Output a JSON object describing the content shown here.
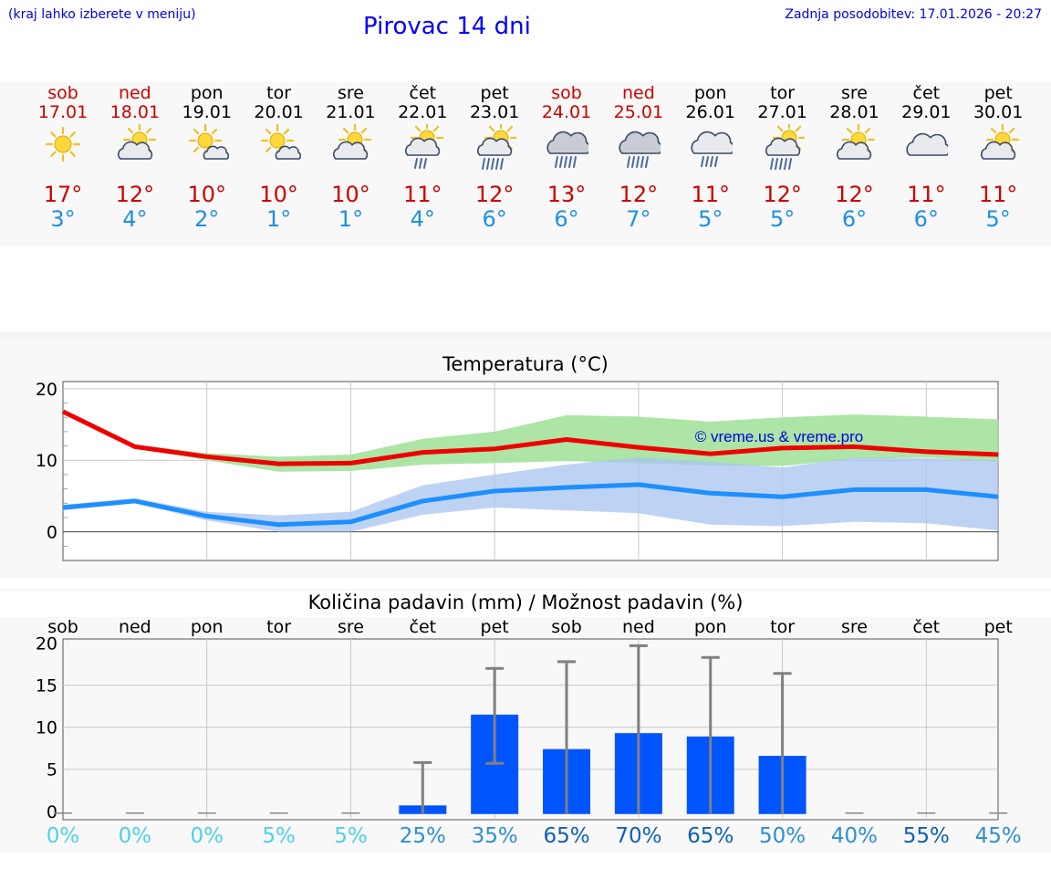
{
  "header": {
    "hint": "(kraj lahko izberete v meniju)",
    "title": "Pirovac 14 dni",
    "updated": "Zadnja posodobitev: 17.01.2026 - 20:27"
  },
  "days": [
    {
      "name": "sob",
      "date": "17.01",
      "weekend": true,
      "icon": "sunny-icon",
      "max": "17°",
      "min": "3°"
    },
    {
      "name": "ned",
      "date": "18.01",
      "weekend": true,
      "icon": "partly-cloudy-icon",
      "max": "12°",
      "min": "4°"
    },
    {
      "name": "pon",
      "date": "19.01",
      "weekend": false,
      "icon": "sun-small-cloud-icon",
      "max": "10°",
      "min": "2°"
    },
    {
      "name": "tor",
      "date": "20.01",
      "weekend": false,
      "icon": "sun-small-cloud-icon",
      "max": "10°",
      "min": "1°"
    },
    {
      "name": "sre",
      "date": "21.01",
      "weekend": false,
      "icon": "partly-cloudy-icon",
      "max": "10°",
      "min": "1°"
    },
    {
      "name": "čet",
      "date": "22.01",
      "weekend": false,
      "icon": "sun-cloud-light-rain-icon",
      "max": "11°",
      "min": "4°"
    },
    {
      "name": "pet",
      "date": "23.01",
      "weekend": false,
      "icon": "sun-cloud-rain-icon",
      "max": "12°",
      "min": "6°"
    },
    {
      "name": "sob",
      "date": "24.01",
      "weekend": true,
      "icon": "cloud-rain-icon",
      "max": "13°",
      "min": "6°"
    },
    {
      "name": "ned",
      "date": "25.01",
      "weekend": true,
      "icon": "cloud-rain-icon",
      "max": "12°",
      "min": "7°"
    },
    {
      "name": "pon",
      "date": "26.01",
      "weekend": false,
      "icon": "cloud-light-rain-icon",
      "max": "11°",
      "min": "5°"
    },
    {
      "name": "tor",
      "date": "27.01",
      "weekend": false,
      "icon": "sun-cloud-rain-icon",
      "max": "12°",
      "min": "5°"
    },
    {
      "name": "sre",
      "date": "28.01",
      "weekend": false,
      "icon": "partly-cloudy-icon",
      "max": "12°",
      "min": "6°"
    },
    {
      "name": "čet",
      "date": "29.01",
      "weekend": false,
      "icon": "cloudy-icon",
      "max": "11°",
      "min": "6°"
    },
    {
      "name": "pet",
      "date": "30.01",
      "weekend": false,
      "icon": "partly-cloudy-icon",
      "max": "11°",
      "min": "5°"
    }
  ],
  "colors": {
    "max_line": "#ee0000",
    "max_band": "#a8e4a0",
    "min_line": "#1e8fff",
    "min_band": "#a8c4f0",
    "bar": "#0055ff",
    "whisker": "#808080",
    "grid": "#c8c8c8",
    "weekend_text": "#cc0000",
    "max_text": "#cc0000",
    "min_text": "#1e8fe6",
    "pct_low": "#4fd0e0",
    "pct_mid": "#2f8fd0",
    "pct_high": "#1060b0"
  },
  "chart_data": [
    {
      "type": "line",
      "title": "Temperatura (°C)",
      "watermark": "© vreme.us & vreme.pro",
      "ylim": [
        -4,
        21
      ],
      "yticks": [
        0,
        10,
        20
      ],
      "x": [
        0,
        1,
        2,
        3,
        4,
        5,
        6,
        7,
        8,
        9,
        10,
        11,
        12,
        13
      ],
      "series": [
        {
          "name": "max",
          "values": [
            16.8,
            11.9,
            10.5,
            9.5,
            9.6,
            11.1,
            11.6,
            12.9,
            11.8,
            10.9,
            11.7,
            11.9,
            11.2,
            10.8
          ],
          "band_low": [
            16.5,
            11.7,
            10.0,
            8.4,
            8.5,
            9.4,
            9.6,
            9.9,
            9.6,
            9.3,
            9.2,
            10.2,
            10.4,
            9.8
          ],
          "band_high": [
            17.0,
            12.2,
            11.0,
            10.5,
            10.8,
            13.0,
            14.0,
            16.3,
            16.1,
            15.4,
            16.0,
            16.4,
            16.1,
            15.7
          ]
        },
        {
          "name": "min",
          "values": [
            3.4,
            4.3,
            2.2,
            1.0,
            1.4,
            4.3,
            5.7,
            6.2,
            6.6,
            5.4,
            4.9,
            5.9,
            5.9,
            4.9
          ],
          "band_low": [
            3.0,
            4.0,
            1.6,
            0.0,
            0.0,
            2.4,
            3.4,
            3.0,
            2.6,
            1.0,
            0.8,
            1.4,
            1.2,
            0.2
          ],
          "band_high": [
            3.8,
            4.7,
            2.8,
            2.3,
            2.8,
            6.5,
            8.0,
            9.4,
            10.4,
            9.8,
            9.0,
            10.4,
            10.3,
            10.0
          ]
        }
      ]
    },
    {
      "type": "bar",
      "title": "Količina padavin (mm) / Možnost padavin (%)",
      "categories": [
        "sob",
        "ned",
        "pon",
        "tor",
        "sre",
        "čet",
        "pet",
        "sob",
        "ned",
        "pon",
        "tor",
        "sre",
        "čet",
        "pet"
      ],
      "ylim": [
        -1,
        20.5
      ],
      "yticks": [
        0,
        5,
        10,
        15,
        20
      ],
      "values": [
        0,
        0,
        0,
        0,
        0,
        0.7,
        11.5,
        7.4,
        9.3,
        8.9,
        6.6,
        0,
        0,
        0
      ],
      "error_low": [
        0,
        0,
        0,
        0,
        0,
        0,
        5.7,
        0,
        0,
        0,
        0,
        0,
        0,
        0
      ],
      "error_high": [
        0,
        0,
        0,
        0,
        0,
        5.8,
        17.0,
        17.8,
        19.7,
        18.3,
        16.4,
        0,
        0,
        0
      ],
      "probability": [
        "0%",
        "0%",
        "0%",
        "5%",
        "5%",
        "25%",
        "35%",
        "65%",
        "70%",
        "65%",
        "50%",
        "40%",
        "55%",
        "45%"
      ],
      "probability_level": [
        "low",
        "low",
        "low",
        "low",
        "low",
        "mid",
        "mid",
        "high",
        "high",
        "high",
        "mid",
        "mid",
        "high",
        "mid"
      ]
    }
  ]
}
